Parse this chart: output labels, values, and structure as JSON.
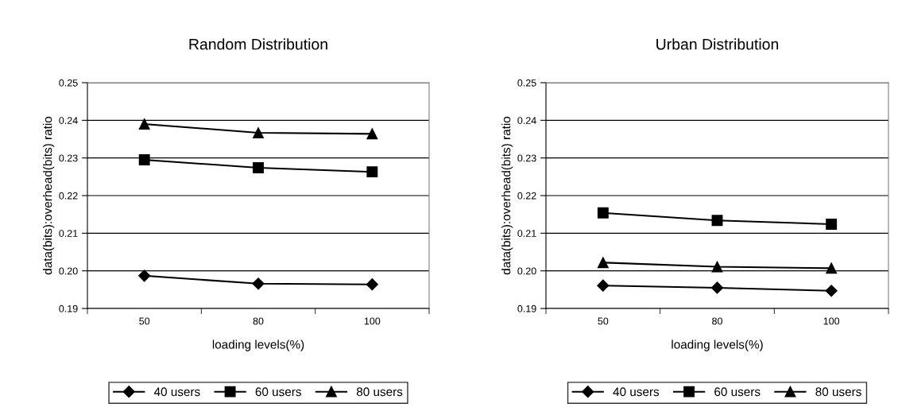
{
  "chart_data": [
    {
      "type": "line",
      "title": "Random Distribution",
      "xlabel": "loading levels(%)",
      "ylabel": "data(bits):overhead(bits) ratio",
      "categories": [
        "50",
        "80",
        "100"
      ],
      "ylim": [
        0.19,
        0.25
      ],
      "yticks": [
        {
          "value": 0.19,
          "label": "0.19"
        },
        {
          "value": 0.2,
          "label": "0.20"
        },
        {
          "value": 0.21,
          "label": "0.21"
        },
        {
          "value": 0.22,
          "label": "0.22"
        },
        {
          "value": 0.23,
          "label": "0.23"
        },
        {
          "value": 0.24,
          "label": "0.24"
        },
        {
          "value": 0.25,
          "label": "0.25"
        }
      ],
      "grid": "y",
      "legend": "bottom",
      "series": [
        {
          "name": "40 users",
          "color": "#000000",
          "marker": "diamond",
          "values": [
            0.1987,
            0.1966,
            0.1964
          ]
        },
        {
          "name": "60 users",
          "color": "#000000",
          "marker": "square",
          "values": [
            0.2295,
            0.2274,
            0.2263
          ]
        },
        {
          "name": "80 users",
          "color": "#000000",
          "marker": "triangle",
          "values": [
            0.239,
            0.2367,
            0.2364
          ]
        }
      ]
    },
    {
      "type": "line",
      "title": "Urban Distribution",
      "xlabel": "loading levels(%)",
      "ylabel": "data(bits):overhead(bits) ratio",
      "categories": [
        "50",
        "80",
        "100"
      ],
      "ylim": [
        0.19,
        0.25
      ],
      "yticks": [
        {
          "value": 0.19,
          "label": "0.19"
        },
        {
          "value": 0.2,
          "label": "0.20"
        },
        {
          "value": 0.21,
          "label": "0.21"
        },
        {
          "value": 0.22,
          "label": "0.22"
        },
        {
          "value": 0.23,
          "label": "0.23"
        },
        {
          "value": 0.24,
          "label": "0.24"
        },
        {
          "value": 0.25,
          "label": "0.25"
        }
      ],
      "grid": "y",
      "legend": "bottom",
      "series": [
        {
          "name": "40 users",
          "color": "#000000",
          "marker": "diamond",
          "values": [
            0.1961,
            0.1955,
            0.1947
          ]
        },
        {
          "name": "60 users",
          "color": "#000000",
          "marker": "square",
          "values": [
            0.2154,
            0.2134,
            0.2124
          ]
        },
        {
          "name": "80 users",
          "color": "#000000",
          "marker": "triangle",
          "values": [
            0.2022,
            0.2011,
            0.2007
          ]
        }
      ]
    }
  ]
}
